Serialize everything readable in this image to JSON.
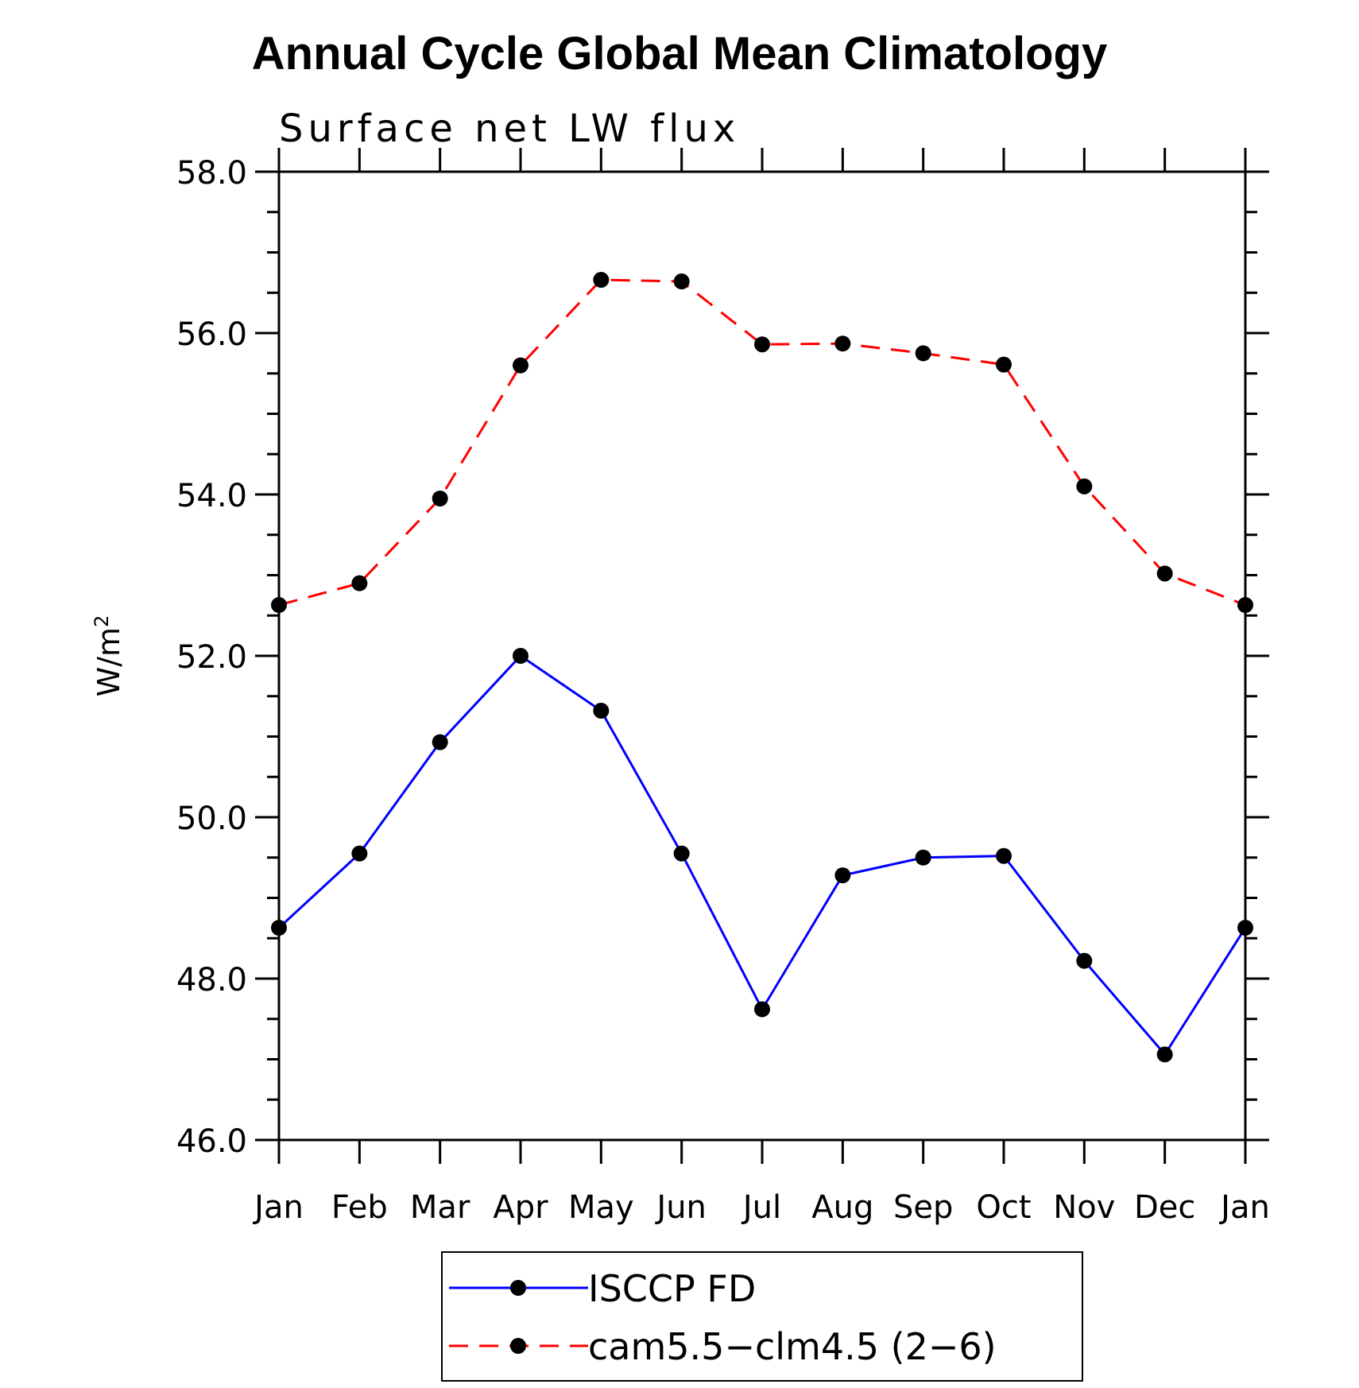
{
  "chart_data": {
    "type": "line",
    "title": "Annual Cycle Global Mean Climatology",
    "subtitle": "Surface net LW flux",
    "ylabel": "W/m",
    "ylabel_sup": "2",
    "xlabel": "",
    "categories": [
      "Jan",
      "Feb",
      "Mar",
      "Apr",
      "May",
      "Jun",
      "Jul",
      "Aug",
      "Sep",
      "Oct",
      "Nov",
      "Dec",
      "Jan"
    ],
    "ylim": [
      46.0,
      58.0
    ],
    "yticks": [
      "46.0",
      "48.0",
      "50.0",
      "52.0",
      "54.0",
      "56.0",
      "58.0"
    ],
    "grid": false,
    "legend_position": "bottom-center",
    "series": [
      {
        "name": "ISCCP FD",
        "color": "#0000ff",
        "dash": "solid",
        "marker": "circle",
        "values": [
          48.63,
          49.55,
          50.93,
          52.0,
          51.32,
          49.55,
          47.62,
          49.28,
          49.5,
          49.52,
          48.22,
          47.06,
          48.63
        ]
      },
      {
        "name": "cam5.5−clm4.5 (2−6)",
        "color": "#ff0000",
        "dash": "dashed",
        "marker": "circle",
        "values": [
          52.63,
          52.9,
          53.95,
          55.6,
          56.66,
          56.64,
          55.86,
          55.87,
          55.75,
          55.61,
          54.1,
          53.02,
          52.63
        ]
      }
    ]
  }
}
